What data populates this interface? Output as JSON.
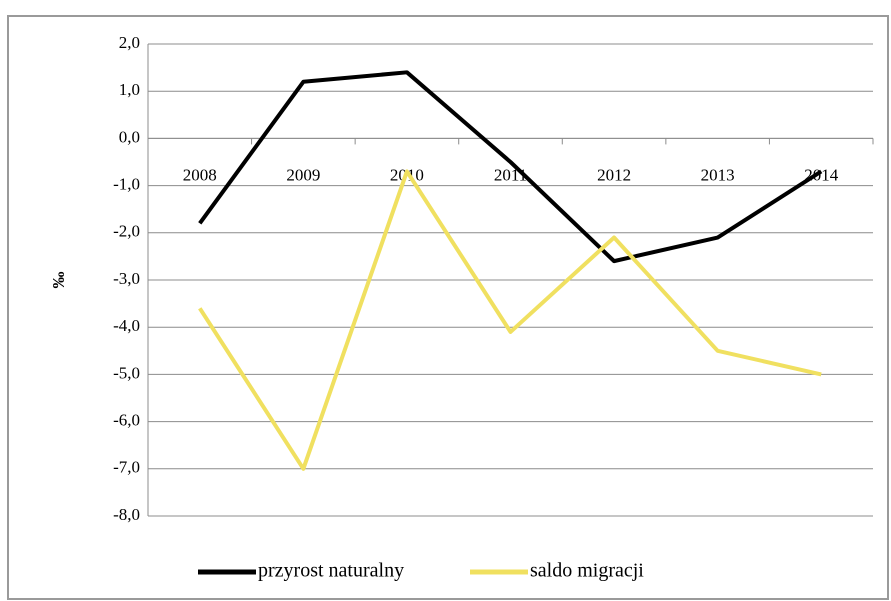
{
  "chart_data": {
    "type": "line",
    "y_label": "‰",
    "categories": [
      "2008",
      "2009",
      "2010",
      "2011",
      "2012",
      "2013",
      "2014"
    ],
    "series": [
      {
        "name": "przyrost naturalny",
        "color": "#000000",
        "values": [
          -1.8,
          1.2,
          1.4,
          -0.5,
          -2.6,
          -2.1,
          -0.7
        ]
      },
      {
        "name": "saldo migracji",
        "color": "#f0e060",
        "values": [
          -3.6,
          -7.0,
          -0.7,
          -4.1,
          -2.1,
          -4.5,
          -5.0
        ]
      }
    ],
    "ylim": [
      -8,
      2
    ],
    "yticks": [
      {
        "value": 2,
        "label": "2,0"
      },
      {
        "value": 1,
        "label": "1,0"
      },
      {
        "value": 0,
        "label": "0,0"
      },
      {
        "value": -1,
        "label": "-1,0"
      },
      {
        "value": -2,
        "label": "-2,0"
      },
      {
        "value": -3,
        "label": "-3,0"
      },
      {
        "value": -4,
        "label": "-4,0"
      },
      {
        "value": -5,
        "label": "-5,0"
      },
      {
        "value": -6,
        "label": "-6,0"
      },
      {
        "value": -7,
        "label": "-7,0"
      },
      {
        "value": -8,
        "label": "-8,0"
      }
    ],
    "grid": true,
    "legend": "bottom"
  }
}
